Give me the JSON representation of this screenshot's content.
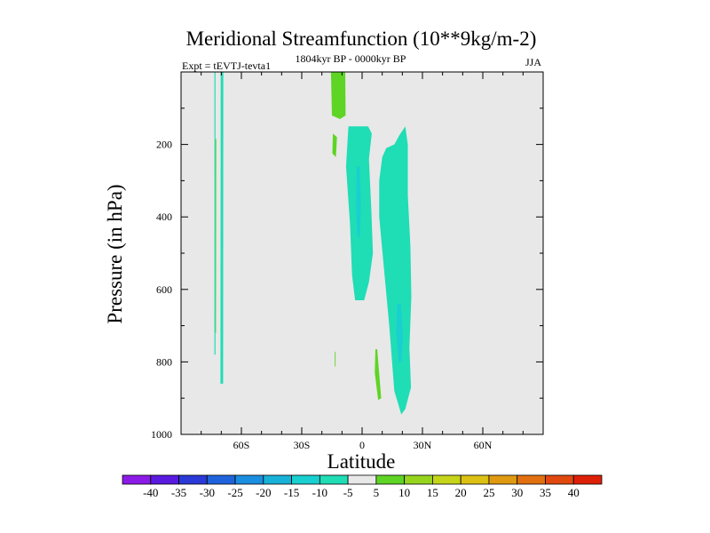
{
  "chart_data": {
    "type": "heatmap",
    "title": "Meridional Streamfunction (10**9kg/m-2)",
    "subtitle_left": "Expt = tEVTJ-tevta1",
    "subtitle_center": "1804kyr BP - 0000kyr BP",
    "subtitle_right": "JJA",
    "xlabel": "Latitude",
    "ylabel": "Pressure (in hPa)",
    "xlim": [
      -90,
      90
    ],
    "ylim": [
      1000,
      0
    ],
    "x_ticks": [
      {
        "value": -60,
        "label": "60S"
      },
      {
        "value": -30,
        "label": "30S"
      },
      {
        "value": 0,
        "label": "0"
      },
      {
        "value": 30,
        "label": "30N"
      },
      {
        "value": 60,
        "label": "60N"
      }
    ],
    "y_ticks": [
      {
        "value": 200,
        "label": "200"
      },
      {
        "value": 400,
        "label": "400"
      },
      {
        "value": 600,
        "label": "600"
      },
      {
        "value": 800,
        "label": "800"
      },
      {
        "value": 1000,
        "label": "1000"
      }
    ],
    "background_color": "#e8e8e8",
    "colorbar": {
      "labels": [
        "-40",
        "-35",
        "-30",
        "-25",
        "-20",
        "-15",
        "-10",
        "-5",
        "5",
        "10",
        "15",
        "20",
        "25",
        "30",
        "35",
        "40"
      ],
      "colors": [
        "#8c1ae6",
        "#5a1adf",
        "#2a3ad6",
        "#1f63dc",
        "#1a8ee0",
        "#18b1d8",
        "#19cfcf",
        "#1fddb5",
        "#e8e8e8",
        "#5ed424",
        "#96d41e",
        "#c6d41a",
        "#dcc014",
        "#e09a12",
        "#e27010",
        "#e0480e",
        "#de2008"
      ]
    },
    "regions": [
      {
        "name": "sh-polar-positive-strip",
        "level": 5,
        "points": [
          [
            -73.2,
            185
          ],
          [
            -72.5,
            185
          ],
          [
            -72.6,
            720
          ],
          [
            -73.3,
            720
          ]
        ]
      },
      {
        "name": "sh-polar-negative-strip",
        "level": -5,
        "points": [
          [
            -70.3,
            0
          ],
          [
            -69.0,
            0
          ],
          [
            -69.1,
            860
          ],
          [
            -70.4,
            860
          ]
        ]
      },
      {
        "name": "sh-polar-negative-thin",
        "level": -5,
        "points": [
          [
            -73.4,
            0
          ],
          [
            -72.9,
            0
          ],
          [
            -72.9,
            780
          ],
          [
            -73.4,
            780
          ]
        ]
      },
      {
        "name": "upper-positive-column",
        "level": 5,
        "points": [
          [
            -15.5,
            0
          ],
          [
            -8.4,
            0
          ],
          [
            -8.2,
            120
          ],
          [
            -11.0,
            130
          ],
          [
            -15.0,
            120
          ]
        ]
      },
      {
        "name": "mid-positive-patch",
        "level": 5,
        "points": [
          [
            -14.5,
            170
          ],
          [
            -12.5,
            180
          ],
          [
            -13.0,
            235
          ],
          [
            -14.8,
            225
          ]
        ]
      },
      {
        "name": "lower-positive-sliver",
        "level": 5,
        "points": [
          [
            -13.6,
            770
          ],
          [
            -13.2,
            775
          ],
          [
            -13.2,
            815
          ],
          [
            -13.6,
            810
          ]
        ]
      },
      {
        "name": "equatorial-negative-cell",
        "level": -5,
        "points": [
          [
            -6.8,
            150
          ],
          [
            3.0,
            150
          ],
          [
            4.8,
            170
          ],
          [
            3.4,
            240
          ],
          [
            4.6,
            380
          ],
          [
            5.4,
            500
          ],
          [
            3.4,
            580
          ],
          [
            1.0,
            630
          ],
          [
            -3.5,
            630
          ],
          [
            -5.0,
            560
          ],
          [
            -6.0,
            420
          ],
          [
            -8.0,
            260
          ]
        ]
      },
      {
        "name": "equatorial-negative-core",
        "level": -10,
        "points": [
          [
            -2.6,
            260
          ],
          [
            -1.2,
            260
          ],
          [
            -0.6,
            370
          ],
          [
            -1.2,
            460
          ],
          [
            -2.4,
            450
          ],
          [
            -3.0,
            360
          ]
        ]
      },
      {
        "name": "nh-negative-cell",
        "level": -5,
        "points": [
          [
            10.0,
            235
          ],
          [
            12.0,
            210
          ],
          [
            16.0,
            200
          ],
          [
            18.5,
            175
          ],
          [
            21.5,
            150
          ],
          [
            22.7,
            200
          ],
          [
            22.7,
            340
          ],
          [
            24.0,
            480
          ],
          [
            24.5,
            620
          ],
          [
            23.5,
            760
          ],
          [
            24.3,
            870
          ],
          [
            21.5,
            930
          ],
          [
            19.5,
            945
          ],
          [
            16.0,
            880
          ],
          [
            13.5,
            700
          ],
          [
            10.5,
            520
          ],
          [
            8.5,
            400
          ],
          [
            8.5,
            300
          ]
        ]
      },
      {
        "name": "nh-negative-core",
        "level": -10,
        "points": [
          [
            17.5,
            640
          ],
          [
            19.3,
            640
          ],
          [
            20.3,
            730
          ],
          [
            19.6,
            800
          ],
          [
            18.2,
            800
          ],
          [
            17.0,
            720
          ]
        ]
      },
      {
        "name": "nh-lower-positive",
        "level": 5,
        "points": [
          [
            6.6,
            765
          ],
          [
            7.5,
            765
          ],
          [
            9.5,
            900
          ],
          [
            8.0,
            905
          ],
          [
            6.3,
            830
          ]
        ]
      }
    ]
  }
}
